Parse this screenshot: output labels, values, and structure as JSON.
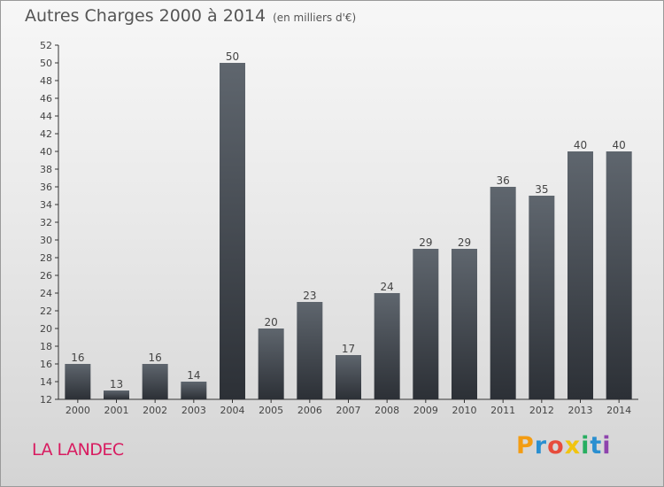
{
  "chart_data": {
    "type": "bar",
    "title": "Autres Charges 2000 à 2014",
    "subtitle": "(en milliers d'€)",
    "xlabel": "",
    "ylabel": "",
    "categories": [
      "2000",
      "2001",
      "2002",
      "2003",
      "2004",
      "2005",
      "2006",
      "2007",
      "2008",
      "2009",
      "2010",
      "2011",
      "2012",
      "2013",
      "2014"
    ],
    "values": [
      16,
      13,
      16,
      14,
      50,
      20,
      23,
      17,
      24,
      29,
      29,
      36,
      35,
      40,
      40
    ],
    "ylim": [
      12,
      52
    ],
    "yticks": [
      "12",
      "14",
      "16",
      "18",
      "20",
      "22",
      "24",
      "26",
      "28",
      "30",
      "32",
      "34",
      "36",
      "38",
      "40",
      "42",
      "44",
      "46",
      "48",
      "50",
      "52"
    ],
    "grid": false,
    "legend": "none",
    "bar_color": "#3e434a"
  },
  "footer": {
    "commune": "LA LANDEC",
    "brand": "Proxiti"
  },
  "colors": {
    "commune_text": "#d81b60",
    "brand_letters": [
      "#f39c12",
      "#2a8fd0",
      "#e74c3c",
      "#f1c40f",
      "#27ae60",
      "#2a8fd0",
      "#8e44ad"
    ]
  }
}
